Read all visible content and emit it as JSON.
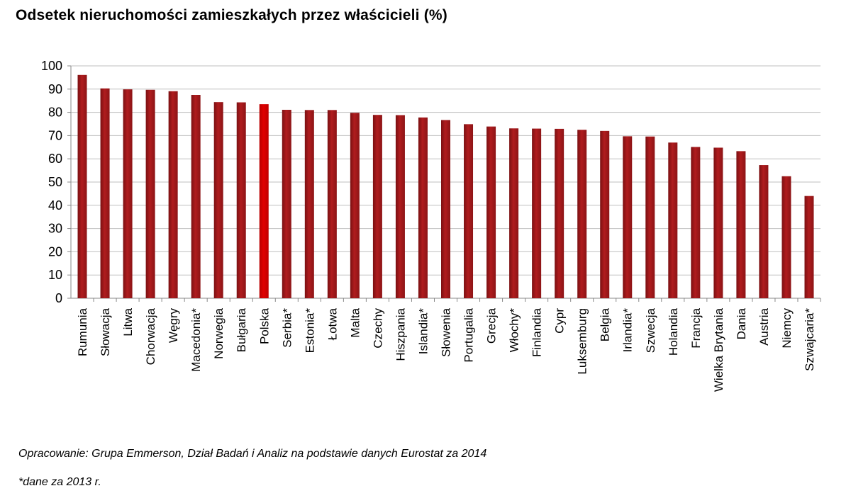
{
  "title": "Odsetek nieruchomości  zamieszkałych przez właścicieli (%)",
  "source_note": "Opracowanie: Grupa Emmerson, Dział Badań i Analiz  na podstawie danych Eurostat za 2014",
  "footnote": "*dane za 2013 r.",
  "colors": {
    "bar": "#b01c1e",
    "highlight": "#e00000",
    "grid": "#bfbfbf"
  },
  "chart_data": {
    "type": "bar",
    "ylim": [
      0,
      100
    ],
    "yticks": [
      0,
      10,
      20,
      30,
      40,
      50,
      60,
      70,
      80,
      90,
      100
    ],
    "grid": true,
    "highlight": "Polska",
    "categories": [
      "Rumunia",
      "Słowacja",
      "Litwa",
      "Chorwacja",
      "Węgry",
      "Macedonia*",
      "Norwegia",
      "Bułgaria",
      "Polska",
      "Serbia*",
      "Estonia*",
      "Łotwa",
      "Malta",
      "Czechy",
      "Hiszpania",
      "Islandia*",
      "Słowenia",
      "Portugalia",
      "Grecja",
      "Włochy*",
      "Finlandia",
      "Cypr",
      "Luksemburg",
      "Belgia",
      "Irlandia*",
      "Szwecja",
      "Holandia",
      "Francja",
      "Wielka Brytania",
      "Dania",
      "Austria",
      "Niemcy",
      "Szwajcaria*"
    ],
    "values": [
      96.1,
      90.3,
      89.9,
      89.7,
      89.1,
      87.5,
      84.4,
      84.3,
      83.5,
      81.1,
      81.0,
      81.0,
      79.8,
      78.9,
      78.8,
      77.8,
      76.7,
      74.9,
      73.9,
      73.1,
      73.0,
      72.9,
      72.5,
      72.0,
      69.7,
      69.6,
      67.0,
      65.1,
      64.8,
      63.3,
      57.3,
      52.5,
      44.0
    ]
  }
}
